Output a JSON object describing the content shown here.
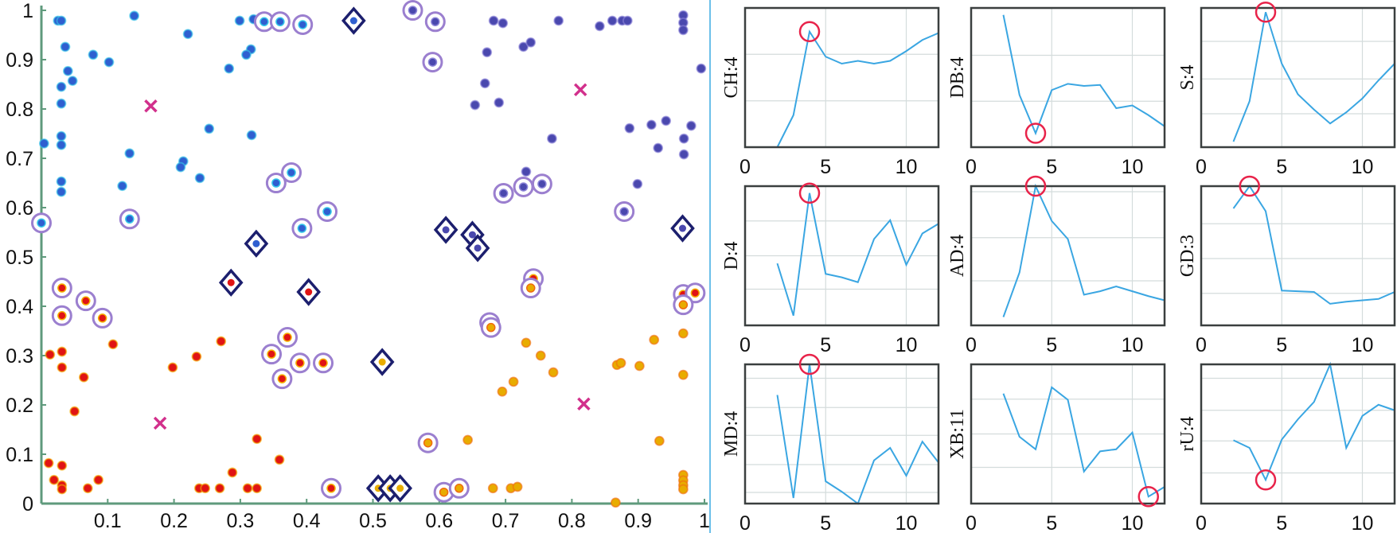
{
  "chart_data": [
    {
      "type": "scatter",
      "xlim": [
        0,
        1
      ],
      "ylim": [
        0,
        1
      ],
      "xticks": [
        "0.1",
        "0.2",
        "0.3",
        "0.4",
        "0.5",
        "0.6",
        "0.7",
        "0.8",
        "0.9",
        "1"
      ],
      "yticks": [
        "0",
        "0.1",
        "0.2",
        "0.3",
        "0.4",
        "0.5",
        "0.6",
        "0.7",
        "0.8",
        "0.9",
        "1"
      ],
      "colors": {
        "axis": "#5f9a7c",
        "circle": "#9b7fcf",
        "diamond": "#1c1f6e",
        "centroid": "#d2308c",
        "divider": "#6cc0ea"
      },
      "clusters": [
        {
          "color": "#2f5fd0",
          "halo": "#35c8ea",
          "points": [
            [
              0.299,
              0.979
            ],
            [
              0.32,
              0.982
            ],
            [
              0.221,
              0.952
            ],
            [
              0.316,
              0.921
            ],
            [
              0.309,
              0.91
            ],
            [
              0.283,
              0.882
            ],
            [
              0.253,
              0.76
            ],
            [
              0.317,
              0.747
            ],
            [
              0.214,
              0.694
            ],
            [
              0.21,
              0.682
            ],
            [
              0.239,
              0.66
            ],
            [
              0.14,
              0.989
            ],
            [
              0.025,
              0.979
            ],
            [
              0.03,
              0.979
            ],
            [
              0.036,
              0.926
            ],
            [
              0.078,
              0.91
            ],
            [
              0.102,
              0.895
            ],
            [
              0.04,
              0.877
            ],
            [
              0.047,
              0.857
            ],
            [
              0.03,
              0.845
            ],
            [
              0.03,
              0.811
            ],
            [
              0.03,
              0.745
            ],
            [
              0.03,
              0.727
            ],
            [
              0.004,
              0.73
            ],
            [
              0.03,
              0.653
            ],
            [
              0.03,
              0.632
            ],
            [
              0.133,
              0.71
            ],
            [
              0.122,
              0.644
            ]
          ]
        },
        {
          "color": "#4a48ae",
          "halo": "#8c84d8",
          "points": [
            [
              0.682,
              0.979
            ],
            [
              0.696,
              0.974
            ],
            [
              0.78,
              0.979
            ],
            [
              0.842,
              0.968
            ],
            [
              0.861,
              0.979
            ],
            [
              0.876,
              0.979
            ],
            [
              0.884,
              0.979
            ],
            [
              0.968,
              0.99
            ],
            [
              0.968,
              0.975
            ],
            [
              0.968,
              0.96
            ],
            [
              0.672,
              0.915
            ],
            [
              0.727,
              0.926
            ],
            [
              0.738,
              0.935
            ],
            [
              0.995,
              0.882
            ],
            [
              0.669,
              0.852
            ],
            [
              0.654,
              0.808
            ],
            [
              0.69,
              0.813
            ],
            [
              0.77,
              0.74
            ],
            [
              0.887,
              0.761
            ],
            [
              0.92,
              0.768
            ],
            [
              0.942,
              0.776
            ],
            [
              0.98,
              0.766
            ],
            [
              0.969,
              0.74
            ],
            [
              0.93,
              0.721
            ],
            [
              0.969,
              0.708
            ],
            [
              0.731,
              0.673
            ],
            [
              0.899,
              0.648
            ]
          ]
        },
        {
          "color": "#e01414",
          "halo": "#f5b000",
          "points": [
            [
              0.108,
              0.323
            ],
            [
              0.013,
              0.302
            ],
            [
              0.031,
              0.308
            ],
            [
              0.031,
              0.276
            ],
            [
              0.064,
              0.256
            ],
            [
              0.05,
              0.187
            ],
            [
              0.198,
              0.276
            ],
            [
              0.234,
              0.298
            ],
            [
              0.271,
              0.329
            ],
            [
              0.325,
              0.131
            ],
            [
              0.359,
              0.089
            ],
            [
              0.288,
              0.063
            ],
            [
              0.011,
              0.082
            ],
            [
              0.031,
              0.077
            ],
            [
              0.019,
              0.048
            ],
            [
              0.031,
              0.037
            ],
            [
              0.031,
              0.029
            ],
            [
              0.07,
              0.031
            ],
            [
              0.086,
              0.048
            ],
            [
              0.238,
              0.031
            ],
            [
              0.247,
              0.031
            ],
            [
              0.269,
              0.031
            ],
            [
              0.311,
              0.031
            ],
            [
              0.325,
              0.031
            ]
          ]
        },
        {
          "color": "#e8ac00",
          "halo": "#f06a10",
          "points": [
            [
              0.643,
              0.129
            ],
            [
              0.681,
              0.031
            ],
            [
              0.708,
              0.031
            ],
            [
              0.718,
              0.034
            ],
            [
              0.695,
              0.227
            ],
            [
              0.712,
              0.247
            ],
            [
              0.731,
              0.326
            ],
            [
              0.753,
              0.3
            ],
            [
              0.772,
              0.266
            ],
            [
              0.868,
              0.281
            ],
            [
              0.874,
              0.285
            ],
            [
              0.902,
              0.279
            ],
            [
              0.924,
              0.332
            ],
            [
              0.968,
              0.345
            ],
            [
              0.968,
              0.261
            ],
            [
              0.932,
              0.127
            ],
            [
              0.968,
              0.058
            ],
            [
              0.968,
              0.047
            ],
            [
              0.968,
              0.037
            ],
            [
              0.968,
              0.029
            ],
            [
              0.866,
              0.002
            ]
          ]
        }
      ],
      "circled": [
        [
          0.0,
          0.569,
          0
        ],
        [
          0.133,
          0.577,
          0
        ],
        [
          0.336,
          0.977,
          0
        ],
        [
          0.36,
          0.977,
          0
        ],
        [
          0.394,
          0.971,
          0
        ],
        [
          0.377,
          0.671,
          0
        ],
        [
          0.354,
          0.65,
          0
        ],
        [
          0.431,
          0.592,
          0
        ],
        [
          0.393,
          0.558,
          0
        ],
        [
          0.56,
          1.0,
          1
        ],
        [
          0.594,
          0.977,
          1
        ],
        [
          0.59,
          0.895,
          1
        ],
        [
          0.697,
          0.629,
          1
        ],
        [
          0.727,
          0.642,
          1
        ],
        [
          0.755,
          0.648,
          1
        ],
        [
          0.879,
          0.592,
          1
        ],
        [
          0.031,
          0.437,
          2
        ],
        [
          0.067,
          0.411,
          2
        ],
        [
          0.031,
          0.381,
          2
        ],
        [
          0.092,
          0.376,
          2
        ],
        [
          0.371,
          0.337,
          2
        ],
        [
          0.347,
          0.303,
          2
        ],
        [
          0.39,
          0.285,
          2
        ],
        [
          0.425,
          0.285,
          2
        ],
        [
          0.363,
          0.253,
          2
        ],
        [
          0.437,
          0.031,
          2
        ],
        [
          0.742,
          0.456,
          2
        ],
        [
          0.968,
          0.424,
          2
        ],
        [
          0.986,
          0.427,
          2
        ],
        [
          0.738,
          0.437,
          3
        ],
        [
          0.676,
          0.367,
          3
        ],
        [
          0.678,
          0.357,
          3
        ],
        [
          0.968,
          0.403,
          3
        ],
        [
          0.583,
          0.123,
          3
        ],
        [
          0.607,
          0.023,
          3
        ],
        [
          0.63,
          0.031,
          3
        ]
      ],
      "diamonds": [
        [
          0.324,
          0.527,
          0
        ],
        [
          0.471,
          0.979,
          0
        ],
        [
          0.61,
          0.555,
          1
        ],
        [
          0.65,
          0.545,
          1
        ],
        [
          0.658,
          0.518,
          1
        ],
        [
          0.967,
          0.558,
          1
        ],
        [
          0.286,
          0.448,
          2
        ],
        [
          0.403,
          0.429,
          2
        ],
        [
          0.514,
          0.287,
          3
        ],
        [
          0.508,
          0.031,
          3
        ],
        [
          0.526,
          0.031,
          3
        ],
        [
          0.541,
          0.031,
          3
        ]
      ],
      "centroids": [
        [
          0.165,
          0.806
        ],
        [
          0.813,
          0.839
        ],
        [
          0.179,
          0.163
        ],
        [
          0.818,
          0.202
        ]
      ]
    },
    {
      "type": "line",
      "small_multiples": true,
      "xlim": [
        0,
        12
      ],
      "xticks": [
        "0",
        "5",
        "10"
      ],
      "line_color": "#3aa6e2",
      "marker_color": "#e8234a",
      "grid": true,
      "panels": [
        {
          "label": "CH:4",
          "selected_k": 4,
          "ygrid": [
            0.333,
            0.667
          ],
          "x": [
            2,
            3,
            4,
            5,
            6,
            7,
            8,
            9,
            10,
            11,
            12
          ],
          "y": [
            0,
            0.23,
            0.83,
            0.65,
            0.6,
            0.62,
            0.6,
            0.62,
            0.69,
            0.77,
            0.82
          ]
        },
        {
          "label": "DB:4",
          "selected_k": 4,
          "ygrid": [
            0.33,
            0.66
          ],
          "x": [
            2,
            3,
            4,
            5,
            6,
            7,
            8,
            9,
            10,
            11,
            12
          ],
          "y": [
            0.95,
            0.375,
            0.1,
            0.41,
            0.455,
            0.44,
            0.447,
            0.28,
            0.3,
            0.23,
            0.15
          ]
        },
        {
          "label": "S:4",
          "selected_k": 4,
          "ygrid": [
            0.24,
            0.49,
            0.76
          ],
          "x": [
            2,
            3,
            4,
            5,
            6,
            7,
            8,
            9,
            10,
            11,
            12
          ],
          "y": [
            0.04,
            0.33,
            0.97,
            0.6,
            0.38,
            0.27,
            0.17,
            0.25,
            0.35,
            0.48,
            0.6
          ]
        },
        {
          "label": "D:4",
          "selected_k": 4,
          "ygrid": [
            0.26,
            0.5,
            0.75
          ],
          "x": [
            2,
            3,
            4,
            5,
            6,
            7,
            8,
            9,
            10,
            11,
            12
          ],
          "y": [
            0.445,
            0.07,
            0.95,
            0.37,
            0.345,
            0.31,
            0.62,
            0.755,
            0.435,
            0.66,
            0.73
          ]
        },
        {
          "label": "AD:4",
          "selected_k": 4,
          "ygrid": [
            0.32,
            0.63,
            0.96
          ],
          "x": [
            2,
            3,
            4,
            5,
            6,
            7,
            8,
            9,
            10,
            11,
            12
          ],
          "y": [
            0.06,
            0.38,
            1.0,
            0.75,
            0.62,
            0.22,
            0.245,
            0.28,
            0.245,
            0.21,
            0.18
          ]
        },
        {
          "label": "GD:3",
          "selected_k": 3,
          "ygrid": [
            0.23,
            0.48,
            0.73
          ],
          "x": [
            2,
            3,
            4,
            5,
            6,
            7,
            8,
            9,
            10,
            11,
            12
          ],
          "y": [
            0.84,
            1.0,
            0.82,
            0.25,
            0.245,
            0.24,
            0.155,
            0.17,
            0.18,
            0.19,
            0.24
          ]
        },
        {
          "label": "MD:4",
          "selected_k": 4,
          "ygrid": [
            0.08,
            0.28,
            0.49,
            0.69,
            0.9
          ],
          "x": [
            2,
            3,
            4,
            5,
            6,
            7,
            8,
            9,
            10,
            11,
            12
          ],
          "y": [
            0.78,
            0.04,
            1.0,
            0.16,
            0.085,
            0,
            0.31,
            0.4,
            0.2,
            0.445,
            0.295
          ]
        },
        {
          "label": "XB:11",
          "selected_k": 11,
          "ygrid": [
            0.26,
            0.5,
            0.75
          ],
          "x": [
            2,
            3,
            4,
            5,
            6,
            7,
            8,
            9,
            10,
            11,
            12
          ],
          "y": [
            0.79,
            0.48,
            0.39,
            0.835,
            0.745,
            0.23,
            0.375,
            0.39,
            0.51,
            0.05,
            0.12
          ]
        },
        {
          "label": "rU:4",
          "selected_k": 4,
          "ygrid": [
            0.22,
            0.45,
            0.67,
            0.9
          ],
          "x": [
            2,
            3,
            4,
            5,
            6,
            7,
            8,
            9,
            10,
            11,
            12
          ],
          "y": [
            0.455,
            0.4,
            0.17,
            0.46,
            0.605,
            0.73,
            1.0,
            0.4,
            0.63,
            0.71,
            0.67
          ]
        }
      ]
    }
  ]
}
